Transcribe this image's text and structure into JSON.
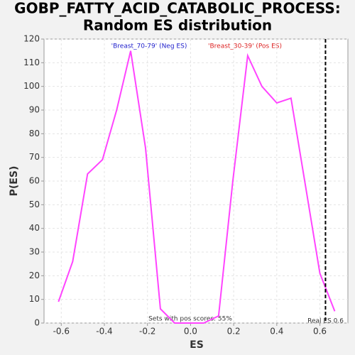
{
  "chart_data": {
    "type": "line",
    "title": [
      "GOBP_FATTY_ACID_CATABOLIC_PROCESS:",
      "Random ES distribution"
    ],
    "x_label": "ES",
    "y_label": "P(ES)",
    "x": [
      -0.613,
      -0.547,
      -0.478,
      -0.409,
      -0.343,
      -0.278,
      -0.209,
      -0.14,
      -0.074,
      -0.005,
      0.061,
      0.13,
      0.196,
      0.265,
      0.331,
      0.4,
      0.466,
      0.535,
      0.6,
      0.669
    ],
    "series": [
      {
        "name": "P(ES)",
        "color": "#ff44ff",
        "values": [
          9,
          26,
          63,
          69,
          90,
          115,
          74,
          6,
          0,
          0,
          0,
          3,
          60,
          113,
          100,
          93,
          95,
          57,
          21,
          5
        ]
      }
    ],
    "xlim": [
      -0.68,
      0.73
    ],
    "ylim": [
      0,
      120
    ],
    "xticks": [
      -0.6,
      -0.4,
      -0.2,
      {
        "value": 0,
        "label": "0.0"
      },
      0.2,
      0.4,
      0.6
    ],
    "yticks": [
      0,
      10,
      20,
      30,
      40,
      50,
      60,
      70,
      80,
      90,
      100,
      110,
      120
    ],
    "grid": true,
    "neg_label": "'Breast_70-79' (Neg ES)",
    "neg_color": "#2222cc",
    "pos_label": "'Breast_30-39' (Pos ES)",
    "pos_color": "#dd2222",
    "annotation": "Sets with pos scores: 55%",
    "real_es": 0.626,
    "real_es_label": "Real ES 0.6"
  }
}
